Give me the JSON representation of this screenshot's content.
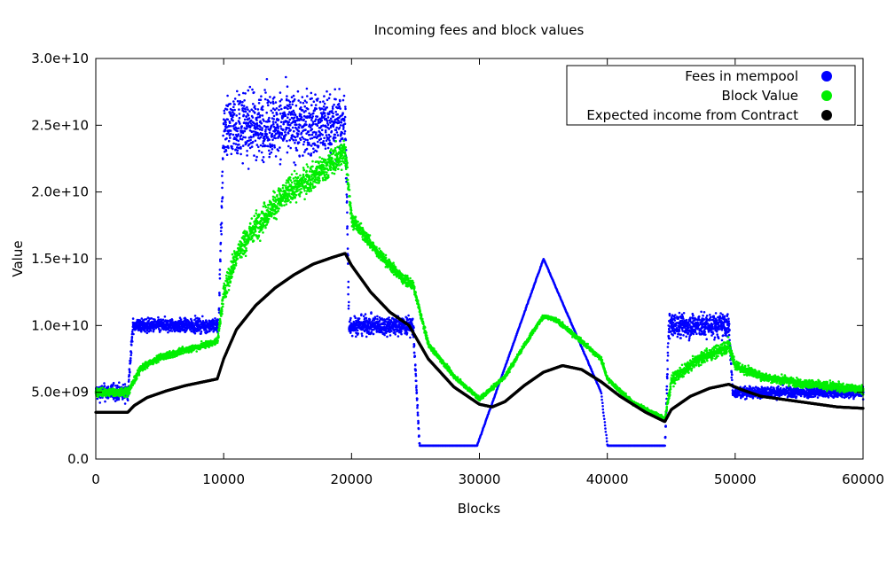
{
  "chart_data": {
    "type": "scatter",
    "title": "Incoming fees and block values",
    "xlabel": "Blocks",
    "ylabel": "Value",
    "xlim": [
      0,
      60000
    ],
    "ylim": [
      0,
      30000000000
    ],
    "xticks": [
      0,
      10000,
      20000,
      30000,
      40000,
      50000,
      60000
    ],
    "xtick_labels": [
      "0",
      "10000",
      "20000",
      "30000",
      "40000",
      "50000",
      "60000"
    ],
    "yticks": [
      0,
      5000000000,
      10000000000,
      15000000000,
      20000000000,
      25000000000,
      30000000000
    ],
    "ytick_labels": [
      "0.0",
      "5.0e+09",
      "1.0e+10",
      "1.5e+10",
      "2.0e+10",
      "2.5e+10",
      "3.0e+10"
    ],
    "grid": false,
    "legend_position": "top-right",
    "series": [
      {
        "name": "Fees in mempool",
        "color": "#0000ff",
        "x": [
          0,
          2500,
          2900,
          9600,
          10000,
          19500,
          19800,
          24800,
          25300,
          29800,
          35000,
          39500,
          40000,
          44500,
          44800,
          49500,
          49800,
          60000
        ],
        "y": [
          5000000000,
          5000000000,
          10000000000,
          10000000000,
          25000000000,
          25000000000,
          10000000000,
          10000000000,
          1000000000,
          1000000000,
          15000000000,
          5000000000,
          1000000000,
          1000000000,
          10000000000,
          10000000000,
          5000000000,
          5000000000
        ],
        "noise_sd": [
          300000000,
          300000000,
          250000000,
          250000000,
          1200000000,
          1200000000,
          350000000,
          350000000,
          0,
          0,
          0,
          0,
          0,
          0,
          450000000,
          450000000,
          200000000,
          200000000
        ]
      },
      {
        "name": "Block Value",
        "color": "#00ee00",
        "x": [
          0,
          2500,
          3500,
          5000,
          7500,
          9500,
          10000,
          11000,
          12500,
          15000,
          17500,
          19500,
          20000,
          22000,
          24000,
          24800,
          26000,
          28000,
          30000,
          32000,
          34000,
          35000,
          36000,
          38000,
          39500,
          40000,
          42000,
          44500,
          45000,
          47000,
          49500,
          50000,
          52000,
          55000,
          60000
        ],
        "y": [
          5000000000,
          5000000000,
          6800000000,
          7600000000,
          8300000000,
          8800000000,
          12500000000,
          15300000000,
          17500000000,
          20000000000,
          21500000000,
          23000000000,
          18000000000,
          15500000000,
          13500000000,
          13000000000,
          8600000000,
          6200000000,
          4500000000,
          6200000000,
          9300000000,
          10700000000,
          10400000000,
          8800000000,
          7500000000,
          6000000000,
          4200000000,
          3000000000,
          5900000000,
          7400000000,
          8500000000,
          7000000000,
          6200000000,
          5700000000,
          5200000000
        ],
        "noise_sd": [
          150000000,
          150000000,
          120000000,
          120000000,
          120000000,
          120000000,
          400000000,
          450000000,
          500000000,
          500000000,
          500000000,
          500000000,
          250000000,
          200000000,
          180000000,
          150000000,
          100000000,
          80000000,
          80000000,
          80000000,
          80000000,
          80000000,
          80000000,
          80000000,
          80000000,
          80000000,
          80000000,
          80000000,
          200000000,
          200000000,
          250000000,
          180000000,
          150000000,
          150000000,
          150000000
        ]
      },
      {
        "name": "Expected income from Contract",
        "color": "#000000",
        "x": [
          0,
          2500,
          3000,
          4000,
          5500,
          7000,
          8500,
          9500,
          10000,
          11000,
          12500,
          14000,
          15500,
          17000,
          18500,
          19500,
          20000,
          21500,
          23000,
          24500,
          26000,
          28000,
          30000,
          31000,
          32000,
          33500,
          35000,
          36500,
          38000,
          39500,
          41000,
          43000,
          44500,
          45000,
          46500,
          48000,
          49500,
          50500,
          52000,
          55000,
          58000,
          60000
        ],
        "y": [
          3500000000,
          3500000000,
          4000000000,
          4600000000,
          5100000000,
          5500000000,
          5800000000,
          6000000000,
          7500000000,
          9700000000,
          11500000000,
          12800000000,
          13800000000,
          14600000000,
          15100000000,
          15400000000,
          14500000000,
          12500000000,
          11000000000,
          10000000000,
          7500000000,
          5400000000,
          4100000000,
          3900000000,
          4300000000,
          5500000000,
          6500000000,
          7000000000,
          6700000000,
          5800000000,
          4700000000,
          3500000000,
          2800000000,
          3700000000,
          4700000000,
          5300000000,
          5600000000,
          5200000000,
          4700000000,
          4300000000,
          3900000000,
          3800000000
        ],
        "noise_sd": []
      }
    ]
  }
}
